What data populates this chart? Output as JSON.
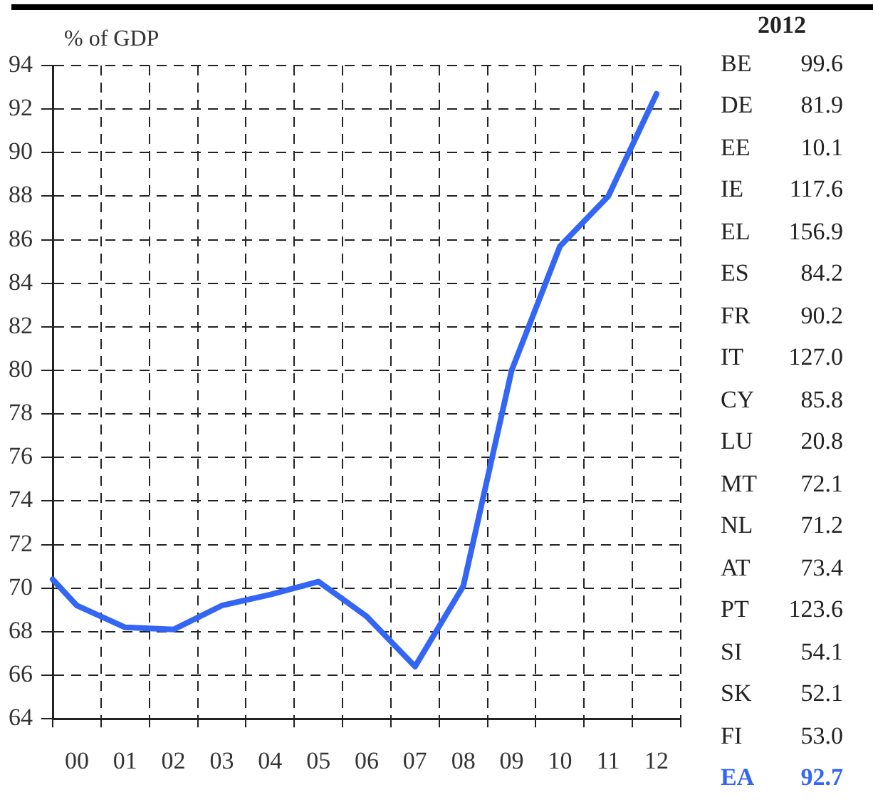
{
  "chart_data": [
    {
      "type": "line",
      "ylabel": "% of GDP",
      "x": [
        -0.5,
        0,
        1,
        2,
        3,
        4,
        5,
        6,
        7,
        8,
        9,
        10,
        11,
        12
      ],
      "series": [
        {
          "color": "#3366f5",
          "values": [
            70.4,
            69.2,
            68.2,
            68.1,
            69.2,
            69.7,
            70.3,
            68.7,
            66.4,
            70.1,
            80.0,
            85.7,
            88.0,
            92.7
          ]
        }
      ],
      "xlim": [
        -0.5,
        12.5
      ],
      "xticks": [
        {
          "value": -0.5,
          "label": null
        },
        {
          "value": 0,
          "label": "00"
        },
        {
          "value": 0.5,
          "label": null
        },
        {
          "value": 1,
          "label": "01"
        },
        {
          "value": 1.5,
          "label": null
        },
        {
          "value": 2,
          "label": "02"
        },
        {
          "value": 2.5,
          "label": null
        },
        {
          "value": 3,
          "label": "03"
        },
        {
          "value": 3.5,
          "label": null
        },
        {
          "value": 4,
          "label": "04"
        },
        {
          "value": 4.5,
          "label": null
        },
        {
          "value": 5,
          "label": "05"
        },
        {
          "value": 5.5,
          "label": null
        },
        {
          "value": 6,
          "label": "06"
        },
        {
          "value": 6.5,
          "label": null
        },
        {
          "value": 7,
          "label": "07"
        },
        {
          "value": 7.5,
          "label": null
        },
        {
          "value": 8,
          "label": "08"
        },
        {
          "value": 8.5,
          "label": null
        },
        {
          "value": 9,
          "label": "09"
        },
        {
          "value": 9.5,
          "label": null
        },
        {
          "value": 10,
          "label": "10"
        },
        {
          "value": 10.5,
          "label": null
        },
        {
          "value": 11,
          "label": "11"
        },
        {
          "value": 11.5,
          "label": null
        },
        {
          "value": 12,
          "label": "12"
        },
        {
          "value": 12.5,
          "label": null
        }
      ],
      "ylim": [
        64,
        94
      ],
      "yticks": [
        64,
        66,
        68,
        70,
        72,
        74,
        76,
        78,
        80,
        82,
        84,
        86,
        88,
        90,
        92,
        94
      ],
      "grid": true,
      "legend": false,
      "marker": "none",
      "line_style": "solid"
    },
    {
      "type": "other",
      "title": "2012",
      "value_labels": [
        "99.6",
        "81.9",
        "10.1",
        "117.6",
        "156.9",
        "84.2",
        "90.2",
        "127.0",
        "85.8",
        "20.8",
        "72.1",
        "71.2",
        "73.4",
        "123.6",
        "54.1",
        "52.1",
        "53.0",
        "92.7"
      ],
      "categories": [
        "BE",
        "DE",
        "EE",
        "IE",
        "EL",
        "ES",
        "FR",
        "IT",
        "CY",
        "LU",
        "MT",
        "NL",
        "AT",
        "PT",
        "SI",
        "SK",
        "FI",
        "EA"
      ],
      "values": [
        99.6,
        81.9,
        10.1,
        117.6,
        156.9,
        84.2,
        90.2,
        127.0,
        85.8,
        20.8,
        72.1,
        71.2,
        73.4,
        123.6,
        54.1,
        52.1,
        53.0,
        92.7
      ],
      "colors": [
        "#222222",
        "#222222",
        "#222222",
        "#222222",
        "#222222",
        "#222222",
        "#222222",
        "#222222",
        "#222222",
        "#222222",
        "#222222",
        "#222222",
        "#222222",
        "#222222",
        "#222222",
        "#222222",
        "#222222",
        "#3366f5"
      ]
    }
  ]
}
